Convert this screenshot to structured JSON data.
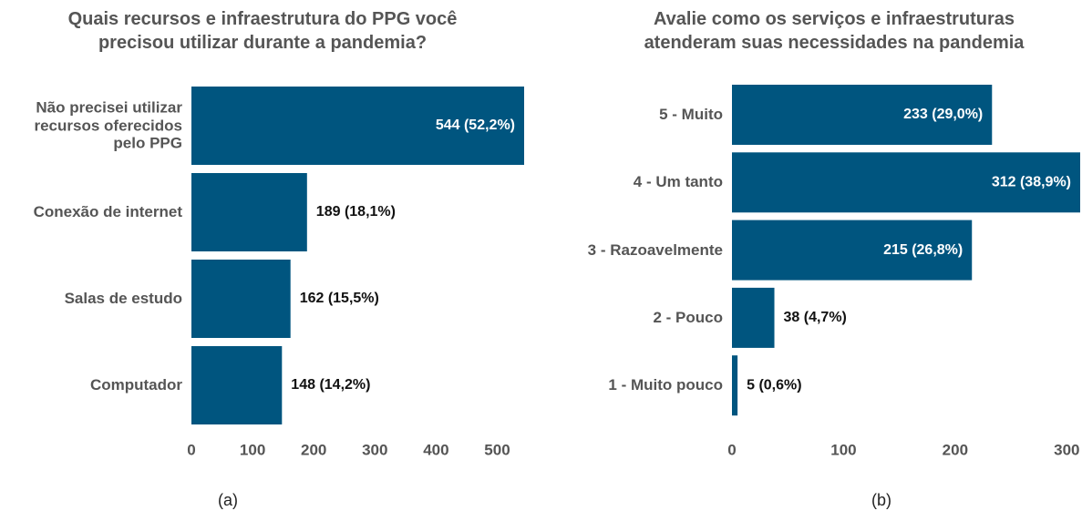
{
  "chart_data": [
    {
      "type": "bar",
      "orientation": "horizontal",
      "title": "Quais recursos e infraestrutura do PPG você\nprecisou utilizar durante a pandemia?",
      "categories": [
        "Não precisei utilizar\nrecursos oferecidos\npelo PPG",
        "Conexão de internet",
        "Salas de estudo",
        "Computador"
      ],
      "values": [
        544,
        189,
        162,
        148
      ],
      "value_labels": [
        "544 (52,2%)",
        "189 (18,1%)",
        "162 (15,5%)",
        "148 (14,2%)"
      ],
      "color": "#00557f",
      "xlim": [
        0,
        544
      ],
      "xticks": [
        0,
        100,
        200,
        300,
        400,
        500
      ],
      "caption": "(a)"
    },
    {
      "type": "bar",
      "orientation": "horizontal",
      "title": "Avalie como os serviços e infraestruturas\natenderam suas necessidades na pandemia",
      "categories": [
        "5 - Muito",
        "4 - Um tanto",
        "3 - Razoavelmente",
        "2 - Pouco",
        "1 - Muito pouco"
      ],
      "values": [
        233,
        312,
        215,
        38,
        5
      ],
      "value_labels": [
        "233 (29,0%)",
        "312 (38,9%)",
        "215 (26,8%)",
        "38 (4,7%)",
        "5 (0,6%)"
      ],
      "color": "#00557f",
      "xlim": [
        0,
        312
      ],
      "xticks": [
        0,
        100,
        200,
        300
      ],
      "caption": "(b)"
    }
  ]
}
